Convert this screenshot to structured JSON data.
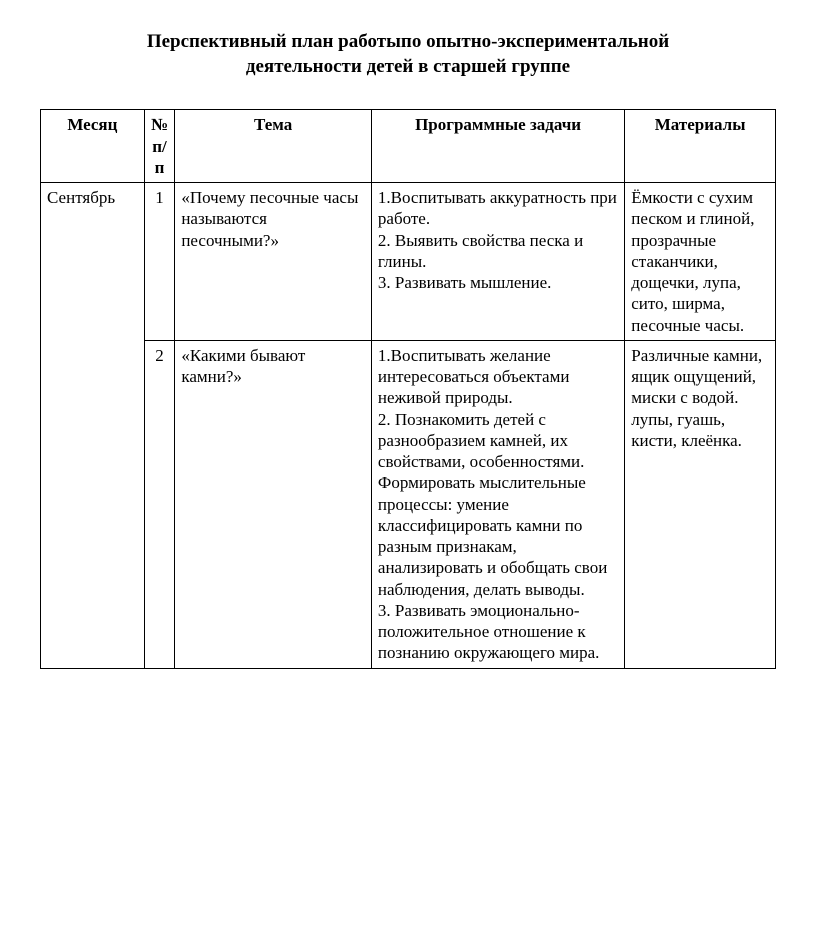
{
  "title_line1": "Перспективный план работыпо опытно-экспериментальной",
  "title_line2": "деятельности детей в старшей группе",
  "headers": {
    "month": "Месяц",
    "num": "№ п/п",
    "topic": "Тема",
    "tasks": "Программные задачи",
    "materials": "Материалы"
  },
  "rows": [
    {
      "month": "Сентябрь",
      "num": "1",
      "topic": "«Почему песочные часы называются песочными?»",
      "tasks": "1.Воспитывать аккуратность при работе.\n2. Выявить свойства песка и глины.\n3. Развивать мышление.",
      "materials": "Ёмкости с сухим песком и глиной, прозрачные стаканчики, дощечки, лупа, сито, ширма, песочные часы."
    },
    {
      "num": "2",
      "topic": "«Какими бывают камни?»",
      "tasks": "1.Воспитывать желание интересоваться объектами неживой природы.\n2. Познакомить детей с разнообразием камней, их свойствами, особенностями. Формировать мыслительные процессы: умение классифицировать камни по разным признакам, анализировать и обобщать свои наблюдения, делать выводы.\n3. Развивать эмоционально-положительное отношение к познанию окружающего мира.",
      "materials": "Различные камни, ящик ощущений, миски с водой. лупы, гуашь, кисти, клеёнка."
    }
  ]
}
